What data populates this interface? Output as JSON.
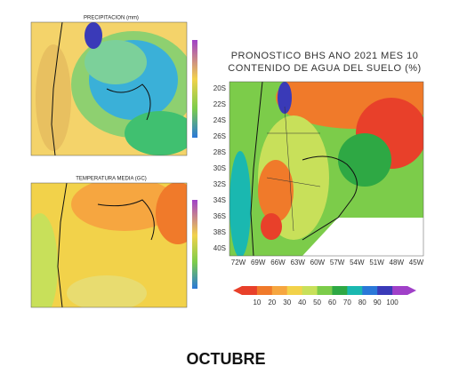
{
  "left_top_map": {
    "title": "PRECIPITACION (mm)"
  },
  "left_bottom_map": {
    "title": "TEMPERATURA MEDIA (GC)"
  },
  "right_map": {
    "title_line1": "PRONOSTICO BHS ANO 2021 MES 10",
    "title_line2": "CONTENIDO DE AGUA DEL SUELO (%)",
    "lat_labels": [
      "20S",
      "22S",
      "24S",
      "26S",
      "28S",
      "30S",
      "32S",
      "34S",
      "36S",
      "38S",
      "40S"
    ],
    "lon_labels": [
      "72W",
      "69W",
      "66W",
      "63W",
      "60W",
      "57W",
      "54W",
      "51W",
      "48W",
      "45W"
    ],
    "colorbar": {
      "labels": [
        10,
        20,
        30,
        40,
        50,
        60,
        70,
        80,
        90,
        100
      ],
      "colors": [
        "#e8402a",
        "#f07a2a",
        "#f6a640",
        "#f2d24a",
        "#c8e05a",
        "#7ccc4a",
        "#2ea844",
        "#1ab8b0",
        "#2a78d8",
        "#3a3ab8",
        "#a040c8"
      ]
    }
  },
  "caption": "OCTUBRE"
}
